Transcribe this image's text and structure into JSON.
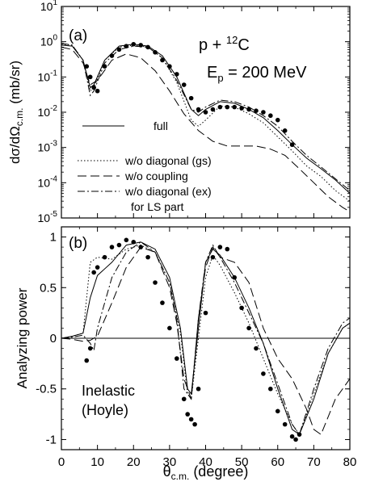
{
  "chart_data": [
    {
      "panel_label": "(a)",
      "type": "line",
      "scale_y": "log",
      "xlim": [
        0,
        80
      ],
      "ylim": [
        1e-05,
        10
      ],
      "ylabel": "dσ/dΩc.m. (mb/sr)",
      "y_tick_labels": [
        "10-5",
        "10-4",
        "10-3",
        "10-2",
        "10-1",
        "100",
        "101"
      ],
      "annotations": {
        "reaction": "p + 12C",
        "energy": "Ep = 200 MeV"
      },
      "legend": {
        "placement": "bottom-left",
        "entries": [
          "full",
          "w/o diagonal (gs)",
          "w/o coupling",
          "w/o diagonal (ex)",
          "for LS part"
        ]
      },
      "series": [
        {
          "name": "full",
          "style": "solid",
          "x": [
            0,
            3,
            6,
            8,
            9,
            12,
            16,
            20,
            24,
            28,
            32,
            36,
            38,
            40,
            44,
            48,
            52,
            56,
            60,
            64,
            68,
            72,
            76,
            80
          ],
          "y": [
            0.8,
            0.75,
            0.3,
            0.05,
            0.06,
            0.3,
            0.75,
            0.85,
            0.75,
            0.4,
            0.1,
            0.012,
            0.008,
            0.012,
            0.02,
            0.018,
            0.012,
            0.007,
            0.003,
            0.0012,
            0.0005,
            0.00025,
            0.00012,
            5e-05
          ]
        },
        {
          "name": "w/o diagonal (gs)",
          "style": "dotted",
          "x": [
            0,
            3,
            6,
            8,
            9,
            12,
            16,
            20,
            24,
            28,
            32,
            36,
            38,
            40,
            44,
            48,
            52,
            56,
            60,
            64,
            68,
            72,
            76,
            80
          ],
          "y": [
            0.85,
            0.8,
            0.3,
            0.04,
            0.05,
            0.3,
            0.7,
            0.8,
            0.7,
            0.35,
            0.07,
            0.006,
            0.004,
            0.006,
            0.015,
            0.014,
            0.009,
            0.005,
            0.002,
            0.0008,
            0.0003,
            0.00015,
            6e-05,
            3e-05
          ]
        },
        {
          "name": "w/o coupling",
          "style": "dashed",
          "x": [
            0,
            3,
            6,
            8,
            10,
            14,
            18,
            22,
            26,
            30,
            34,
            38,
            42,
            46,
            50,
            54,
            58,
            62,
            66,
            70,
            74,
            78,
            80
          ],
          "y": [
            0.7,
            0.6,
            0.25,
            0.06,
            0.08,
            0.3,
            0.45,
            0.35,
            0.15,
            0.04,
            0.009,
            0.003,
            0.0015,
            0.0011,
            0.0011,
            0.0011,
            0.0009,
            0.0006,
            0.00025,
            0.0001,
            4e-05,
            2e-05,
            1.5e-05
          ]
        },
        {
          "name": "w/o diagonal (ex)",
          "style": "dashdot",
          "x": [
            0,
            3,
            6,
            8,
            9,
            12,
            16,
            20,
            24,
            28,
            32,
            36,
            38,
            40,
            44,
            48,
            52,
            56,
            60,
            64,
            68,
            72,
            76,
            80
          ],
          "y": [
            0.9,
            0.8,
            0.3,
            0.03,
            0.04,
            0.25,
            0.6,
            0.75,
            0.7,
            0.35,
            0.08,
            0.012,
            0.01,
            0.014,
            0.022,
            0.02,
            0.014,
            0.008,
            0.004,
            0.0015,
            0.0006,
            0.00028,
            0.00013,
            6e-05
          ]
        },
        {
          "name": "data",
          "style": "markers",
          "x": [
            7,
            8,
            9,
            10,
            12,
            14,
            16,
            18,
            20,
            22,
            24,
            26,
            28,
            30,
            32,
            34,
            36,
            38,
            40,
            42,
            44,
            46,
            48,
            50,
            52,
            54,
            56,
            58,
            60,
            62,
            64
          ],
          "y": [
            0.2,
            0.1,
            0.05,
            0.04,
            0.2,
            0.4,
            0.6,
            0.75,
            0.85,
            0.8,
            0.7,
            0.5,
            0.3,
            0.2,
            0.12,
            0.06,
            0.025,
            0.012,
            0.01,
            0.012,
            0.014,
            0.014,
            0.014,
            0.013,
            0.012,
            0.011,
            0.01,
            0.008,
            0.006,
            0.003,
            0.0012
          ]
        }
      ]
    },
    {
      "panel_label": "(b)",
      "type": "line",
      "xlim": [
        0,
        80
      ],
      "ylim": [
        -1.1,
        1.1
      ],
      "xlabel": "θc.m. (degree)",
      "ylabel": "Analyzing power",
      "x_ticks": [
        0,
        10,
        20,
        30,
        40,
        50,
        60,
        70,
        80
      ],
      "y_tick_labels": [
        "-1",
        "-0.5",
        "0",
        "0.5",
        "1"
      ],
      "y_ticks": [
        -1,
        -0.5,
        0,
        0.5,
        1
      ],
      "annotations": {
        "text1": "Inelastic",
        "text2": "(Hoyle)"
      },
      "series": [
        {
          "name": "full",
          "style": "solid",
          "x": [
            0,
            3,
            6,
            8,
            10,
            14,
            18,
            22,
            26,
            30,
            33,
            35,
            36,
            38,
            40,
            42,
            44,
            48,
            52,
            56,
            60,
            64,
            66,
            70,
            74,
            78,
            80
          ],
          "y": [
            0,
            0.02,
            0.05,
            0.4,
            0.62,
            0.75,
            0.92,
            0.95,
            0.88,
            0.6,
            0.1,
            -0.5,
            -0.55,
            0.1,
            0.75,
            0.88,
            0.82,
            0.6,
            0.3,
            -0.05,
            -0.5,
            -0.9,
            -0.95,
            -0.6,
            -0.15,
            0.1,
            0.15
          ]
        },
        {
          "name": "w/o diagonal (gs)",
          "style": "dotted",
          "x": [
            0,
            3,
            6,
            8,
            10,
            14,
            18,
            22,
            26,
            30,
            33,
            35,
            36,
            38,
            40,
            42,
            44,
            48,
            52,
            56,
            60,
            64,
            66,
            70,
            74,
            78,
            80
          ],
          "y": [
            0,
            0.02,
            0.05,
            0.75,
            0.8,
            0.78,
            0.88,
            0.92,
            0.85,
            0.55,
            0.05,
            -0.55,
            -0.6,
            0,
            0.6,
            0.82,
            0.72,
            0.45,
            0.15,
            -0.2,
            -0.55,
            -0.85,
            -0.95,
            -0.55,
            -0.15,
            0.1,
            0.15
          ]
        },
        {
          "name": "w/o coupling",
          "style": "dashed",
          "x": [
            0,
            3,
            6,
            8,
            10,
            14,
            18,
            22,
            26,
            30,
            32,
            34,
            36,
            38,
            40,
            42,
            44,
            48,
            52,
            56,
            60,
            64,
            68,
            70,
            72,
            76,
            80
          ],
          "y": [
            0,
            -0.01,
            -0.03,
            -0.02,
            0.02,
            0.35,
            0.7,
            0.9,
            0.85,
            0.5,
            0.15,
            -0.4,
            -0.6,
            0.2,
            0.7,
            0.9,
            0.8,
            0.75,
            0.55,
            0.1,
            -0.2,
            -0.4,
            -0.7,
            -0.9,
            -0.95,
            -0.6,
            -0.4
          ]
        },
        {
          "name": "w/o diagonal (ex)",
          "style": "dashdot",
          "x": [
            0,
            3,
            6,
            8,
            9,
            10,
            14,
            18,
            22,
            26,
            30,
            32,
            34,
            36,
            38,
            40,
            42,
            44,
            48,
            52,
            56,
            60,
            64,
            66,
            70,
            74,
            78,
            80
          ],
          "y": [
            0,
            0.01,
            0.03,
            -0.05,
            -0.12,
            0.1,
            0.6,
            0.85,
            0.95,
            0.85,
            0.55,
            0.2,
            -0.5,
            -0.6,
            0.2,
            0.75,
            0.92,
            0.8,
            0.55,
            0.25,
            -0.05,
            -0.45,
            -0.85,
            -0.95,
            -0.5,
            -0.1,
            0.15,
            0.2
          ]
        },
        {
          "name": "data",
          "style": "markers",
          "x": [
            7,
            8,
            9,
            10,
            12,
            14,
            16,
            18,
            20,
            22,
            24,
            26,
            28,
            30,
            32,
            34,
            35,
            36,
            37,
            38,
            40,
            42,
            44,
            46,
            48,
            50,
            52,
            54,
            56,
            58,
            60,
            62,
            64,
            65,
            66
          ],
          "y": [
            -0.22,
            -0.1,
            0.65,
            0.7,
            0.8,
            0.9,
            0.92,
            0.97,
            0.95,
            0.9,
            0.8,
            0.55,
            0.35,
            0.1,
            -0.2,
            -0.6,
            -0.75,
            -0.8,
            -0.85,
            -0.5,
            0.25,
            0.8,
            0.9,
            0.88,
            0.6,
            0.3,
            0.1,
            -0.1,
            -0.35,
            -0.5,
            -0.72,
            -0.85,
            -0.97,
            -1.0,
            -0.95
          ]
        }
      ]
    }
  ]
}
